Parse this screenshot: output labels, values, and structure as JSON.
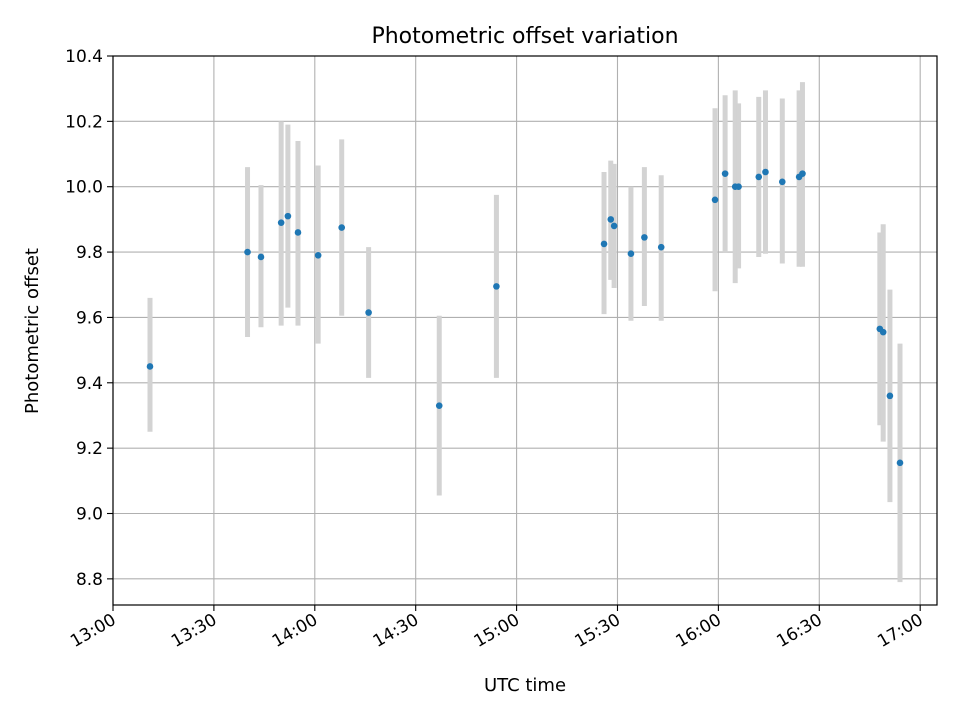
{
  "chart_data": {
    "type": "scatter",
    "title": "Photometric offset variation",
    "xlabel": "UTC time",
    "ylabel": "Photometric offset",
    "x_axis_kind": "time",
    "xlim": [
      "13:00",
      "17:05"
    ],
    "ylim": [
      8.72,
      10.4
    ],
    "x_ticks": [
      "13:00",
      "13:30",
      "14:00",
      "14:30",
      "15:00",
      "15:30",
      "16:00",
      "16:30",
      "17:00"
    ],
    "y_ticks": [
      8.8,
      9.0,
      9.2,
      9.4,
      9.6,
      9.8,
      10.0,
      10.2,
      10.4
    ],
    "y_tick_labels": [
      "8.8",
      "9.0",
      "9.2",
      "9.4",
      "9.6",
      "9.8",
      "10.0",
      "10.2",
      "10.4"
    ],
    "grid": true,
    "legend": "none",
    "colors": {
      "point": "#1f77b4",
      "errorbar": "#d3d3d3",
      "grid": "#b0b0b0"
    },
    "points": [
      {
        "t": "13:11",
        "y": 9.45,
        "lo": 9.25,
        "hi": 9.66
      },
      {
        "t": "13:40",
        "y": 9.8,
        "lo": 9.54,
        "hi": 10.06
      },
      {
        "t": "13:44",
        "y": 9.785,
        "lo": 9.57,
        "hi": 10.005
      },
      {
        "t": "13:50",
        "y": 9.89,
        "lo": 9.575,
        "hi": 10.2
      },
      {
        "t": "13:52",
        "y": 9.91,
        "lo": 9.63,
        "hi": 10.19
      },
      {
        "t": "13:55",
        "y": 9.86,
        "lo": 9.575,
        "hi": 10.14
      },
      {
        "t": "14:01",
        "y": 9.79,
        "lo": 9.52,
        "hi": 10.065
      },
      {
        "t": "14:08",
        "y": 9.875,
        "lo": 9.605,
        "hi": 10.145
      },
      {
        "t": "14:16",
        "y": 9.615,
        "lo": 9.415,
        "hi": 9.815
      },
      {
        "t": "14:37",
        "y": 9.33,
        "lo": 9.055,
        "hi": 9.605
      },
      {
        "t": "14:54",
        "y": 9.695,
        "lo": 9.415,
        "hi": 9.975
      },
      {
        "t": "15:26",
        "y": 9.825,
        "lo": 9.61,
        "hi": 10.045
      },
      {
        "t": "15:28",
        "y": 9.9,
        "lo": 9.715,
        "hi": 10.08
      },
      {
        "t": "15:29",
        "y": 9.88,
        "lo": 9.69,
        "hi": 10.07
      },
      {
        "t": "15:34",
        "y": 9.795,
        "lo": 9.59,
        "hi": 10.0
      },
      {
        "t": "15:38",
        "y": 9.845,
        "lo": 9.635,
        "hi": 10.06
      },
      {
        "t": "15:43",
        "y": 9.815,
        "lo": 9.59,
        "hi": 10.035
      },
      {
        "t": "15:59",
        "y": 9.96,
        "lo": 9.68,
        "hi": 10.24
      },
      {
        "t": "16:02",
        "y": 10.04,
        "lo": 9.8,
        "hi": 10.28
      },
      {
        "t": "16:05",
        "y": 10.0,
        "lo": 9.705,
        "hi": 10.295
      },
      {
        "t": "16:06",
        "y": 10.0,
        "lo": 9.75,
        "hi": 10.255
      },
      {
        "t": "16:12",
        "y": 10.03,
        "lo": 9.785,
        "hi": 10.275
      },
      {
        "t": "16:14",
        "y": 10.045,
        "lo": 9.795,
        "hi": 10.295
      },
      {
        "t": "16:19",
        "y": 10.015,
        "lo": 9.765,
        "hi": 10.27
      },
      {
        "t": "16:24",
        "y": 10.03,
        "lo": 9.755,
        "hi": 10.295
      },
      {
        "t": "16:25",
        "y": 10.04,
        "lo": 9.755,
        "hi": 10.32
      },
      {
        "t": "16:48",
        "y": 9.565,
        "lo": 9.27,
        "hi": 9.86
      },
      {
        "t": "16:49",
        "y": 9.555,
        "lo": 9.22,
        "hi": 9.885
      },
      {
        "t": "16:51",
        "y": 9.36,
        "lo": 9.035,
        "hi": 9.685
      },
      {
        "t": "16:54",
        "y": 9.155,
        "lo": 8.79,
        "hi": 9.52
      }
    ]
  }
}
